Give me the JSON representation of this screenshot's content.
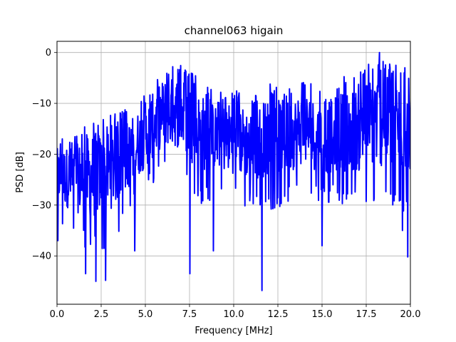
{
  "chart_data": {
    "type": "line",
    "title": "channel063 higain",
    "xlabel": "Frequency [MHz]",
    "ylabel": "PSD [dB]",
    "xlim": [
      0,
      20
    ],
    "ylim": [
      -49.5,
      2.2
    ],
    "xticks": [
      0,
      2.5,
      5,
      7.5,
      10,
      12.5,
      15,
      17.5,
      20
    ],
    "xtick_labels": [
      "0.0",
      "2.5",
      "5.0",
      "7.5",
      "10.0",
      "12.5",
      "15.0",
      "17.5",
      "20.0"
    ],
    "yticks": [
      -40,
      -30,
      -20,
      -10,
      0
    ],
    "ytick_labels": [
      "−40",
      "−30",
      "−20",
      "−10",
      "0"
    ],
    "grid": true,
    "series": [
      {
        "color": "#0000ff",
        "line_width": 2,
        "num_points": 1024,
        "envelope": {
          "x": [
            0,
            1,
            2,
            3,
            4,
            5,
            6,
            7,
            8,
            9,
            10,
            11,
            12,
            13,
            14,
            15,
            16,
            17,
            18,
            19,
            20
          ],
          "upper": [
            -17,
            -16,
            -13,
            -12,
            -11,
            -8,
            -3,
            -2,
            -5,
            -8,
            -7,
            -9,
            -6,
            -7,
            -5,
            -8,
            -5,
            -4,
            -1,
            -2,
            -3
          ],
          "lower": [
            -34,
            -37,
            -40,
            -38,
            -33,
            -28,
            -24,
            -25,
            -30,
            -29,
            -30,
            -31,
            -31,
            -30,
            -28,
            -30,
            -30,
            -31,
            -30,
            -31,
            -32
          ]
        },
        "notable_points": [
          {
            "x": 0.05,
            "y": -37
          },
          {
            "x": 0.3,
            "y": -17
          },
          {
            "x": 1.62,
            "y": -43.5
          },
          {
            "x": 2.2,
            "y": -45
          },
          {
            "x": 2.75,
            "y": -44.8
          },
          {
            "x": 4.4,
            "y": -39
          },
          {
            "x": 7.52,
            "y": -43.5
          },
          {
            "x": 8.85,
            "y": -39
          },
          {
            "x": 11.6,
            "y": -46.8
          },
          {
            "x": 15.0,
            "y": -38
          },
          {
            "x": 18.25,
            "y": 0
          },
          {
            "x": 19.55,
            "y": -35
          },
          {
            "x": 19.85,
            "y": -40.2
          },
          {
            "x": 19.95,
            "y": -12
          }
        ]
      }
    ]
  }
}
